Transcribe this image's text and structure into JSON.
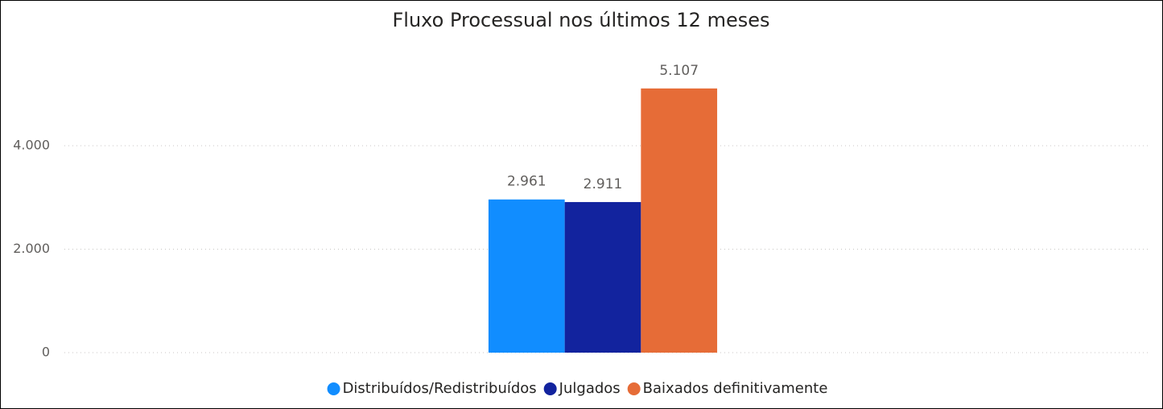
{
  "chart_data": {
    "type": "bar",
    "title": "Fluxo Processual nos últimos 12 meses",
    "categories": [
      null
    ],
    "series": [
      {
        "name": "Distribuídos/Redistribuídos",
        "color": "#118DFF",
        "values": [
          2961
        ],
        "value_labels": [
          "2.961"
        ]
      },
      {
        "name": "Julgados",
        "color": "#12239E",
        "values": [
          2911
        ],
        "value_labels": [
          "2.911"
        ]
      },
      {
        "name": "Baixados definitivamente",
        "color": "#E66C37",
        "values": [
          5107
        ],
        "value_labels": [
          "5.107"
        ]
      }
    ],
    "ylim": [
      0,
      5500
    ],
    "yticks": [
      0,
      {
        "value": 2000,
        "label": "2.000"
      },
      {
        "value": 4000,
        "label": "4.000"
      }
    ],
    "grid": true,
    "legend": "bottom"
  }
}
